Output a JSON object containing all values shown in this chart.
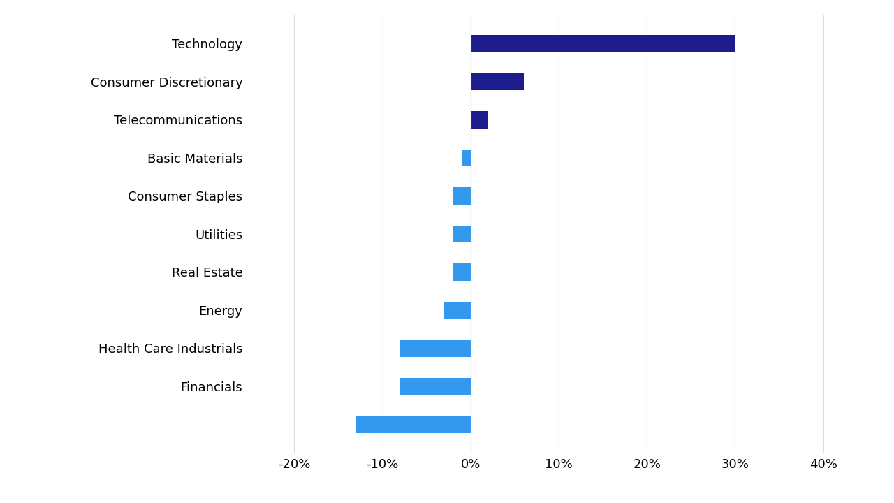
{
  "categories": [
    "Technology",
    "Consumer Discretionary",
    "Telecommunications",
    "Basic Materials",
    "Consumer Staples",
    "Utilities",
    "Real Estate",
    "Energy",
    "Health Care Industrials",
    "Financials",
    ""
  ],
  "values": [
    30,
    6,
    2,
    -1,
    -2,
    -2,
    -2,
    -3,
    -8,
    -8,
    -13
  ],
  "colors": [
    "#1c1c8c",
    "#1c1c8c",
    "#1c1c8c",
    "#3399ee",
    "#3399ee",
    "#3399ee",
    "#3399ee",
    "#3399ee",
    "#3399ee",
    "#3399ee",
    "#3399ee"
  ],
  "xlim": [
    -25,
    45
  ],
  "xticks": [
    -20,
    -10,
    0,
    10,
    20,
    30,
    40
  ],
  "xtick_labels": [
    "-20%",
    "-10%",
    "0%",
    "10%",
    "20%",
    "30%",
    "40%"
  ],
  "background_color": "#ffffff",
  "bar_height": 0.45,
  "grid_color": "#dddddd",
  "label_fontsize": 13,
  "xtick_fontsize": 13
}
